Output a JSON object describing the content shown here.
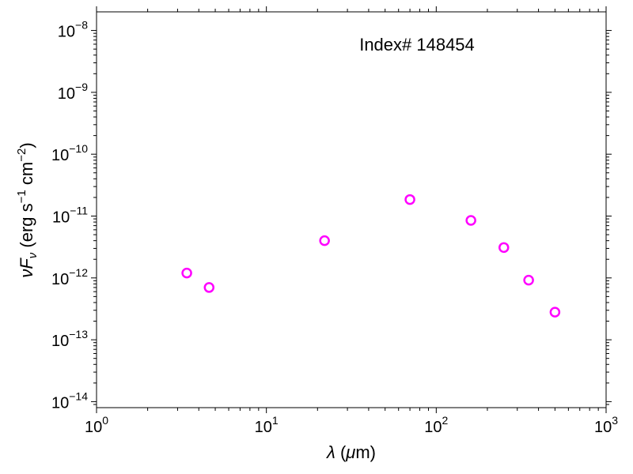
{
  "chart_data": {
    "type": "scatter",
    "xscale": "log",
    "yscale": "log",
    "xlim": [
      1,
      1000
    ],
    "ylim": [
      8e-15,
      2e-08
    ],
    "x_ticks": [
      {
        "value": 1,
        "base": "10",
        "exp": "0"
      },
      {
        "value": 10,
        "base": "10",
        "exp": "1"
      },
      {
        "value": 100,
        "base": "10",
        "exp": "2"
      },
      {
        "value": 1000,
        "base": "10",
        "exp": "3"
      }
    ],
    "y_ticks": [
      {
        "value": 1e-14,
        "base": "10",
        "exp": "−14"
      },
      {
        "value": 1e-13,
        "base": "10",
        "exp": "−13"
      },
      {
        "value": 1e-12,
        "base": "10",
        "exp": "−12"
      },
      {
        "value": 1e-11,
        "base": "10",
        "exp": "−11"
      },
      {
        "value": 1e-10,
        "base": "10",
        "exp": "−10"
      },
      {
        "value": 1e-09,
        "base": "10",
        "exp": "−9"
      },
      {
        "value": 1e-08,
        "base": "10",
        "exp": "−8"
      }
    ],
    "xlabel": {
      "lambda": "λ",
      "rest": " (",
      "mu": "μ",
      "unit": "m)"
    },
    "ylabel": {
      "nu": "ν",
      "F": "F",
      "sub": "ν",
      "unit_open": " (erg s",
      "exp1": "−1",
      "mid": " cm",
      "exp2": "−2",
      "close": ")"
    },
    "annotation": "Index# 148454",
    "grid": false,
    "marker_color": "#ff00ff",
    "series": [
      {
        "x": [
          3.4,
          4.6,
          22,
          70,
          160,
          250,
          350,
          500
        ],
        "y": [
          1.2e-12,
          7e-13,
          4e-12,
          1.85e-11,
          8.5e-12,
          3.1e-12,
          9.2e-13,
          2.8e-13
        ]
      }
    ]
  }
}
